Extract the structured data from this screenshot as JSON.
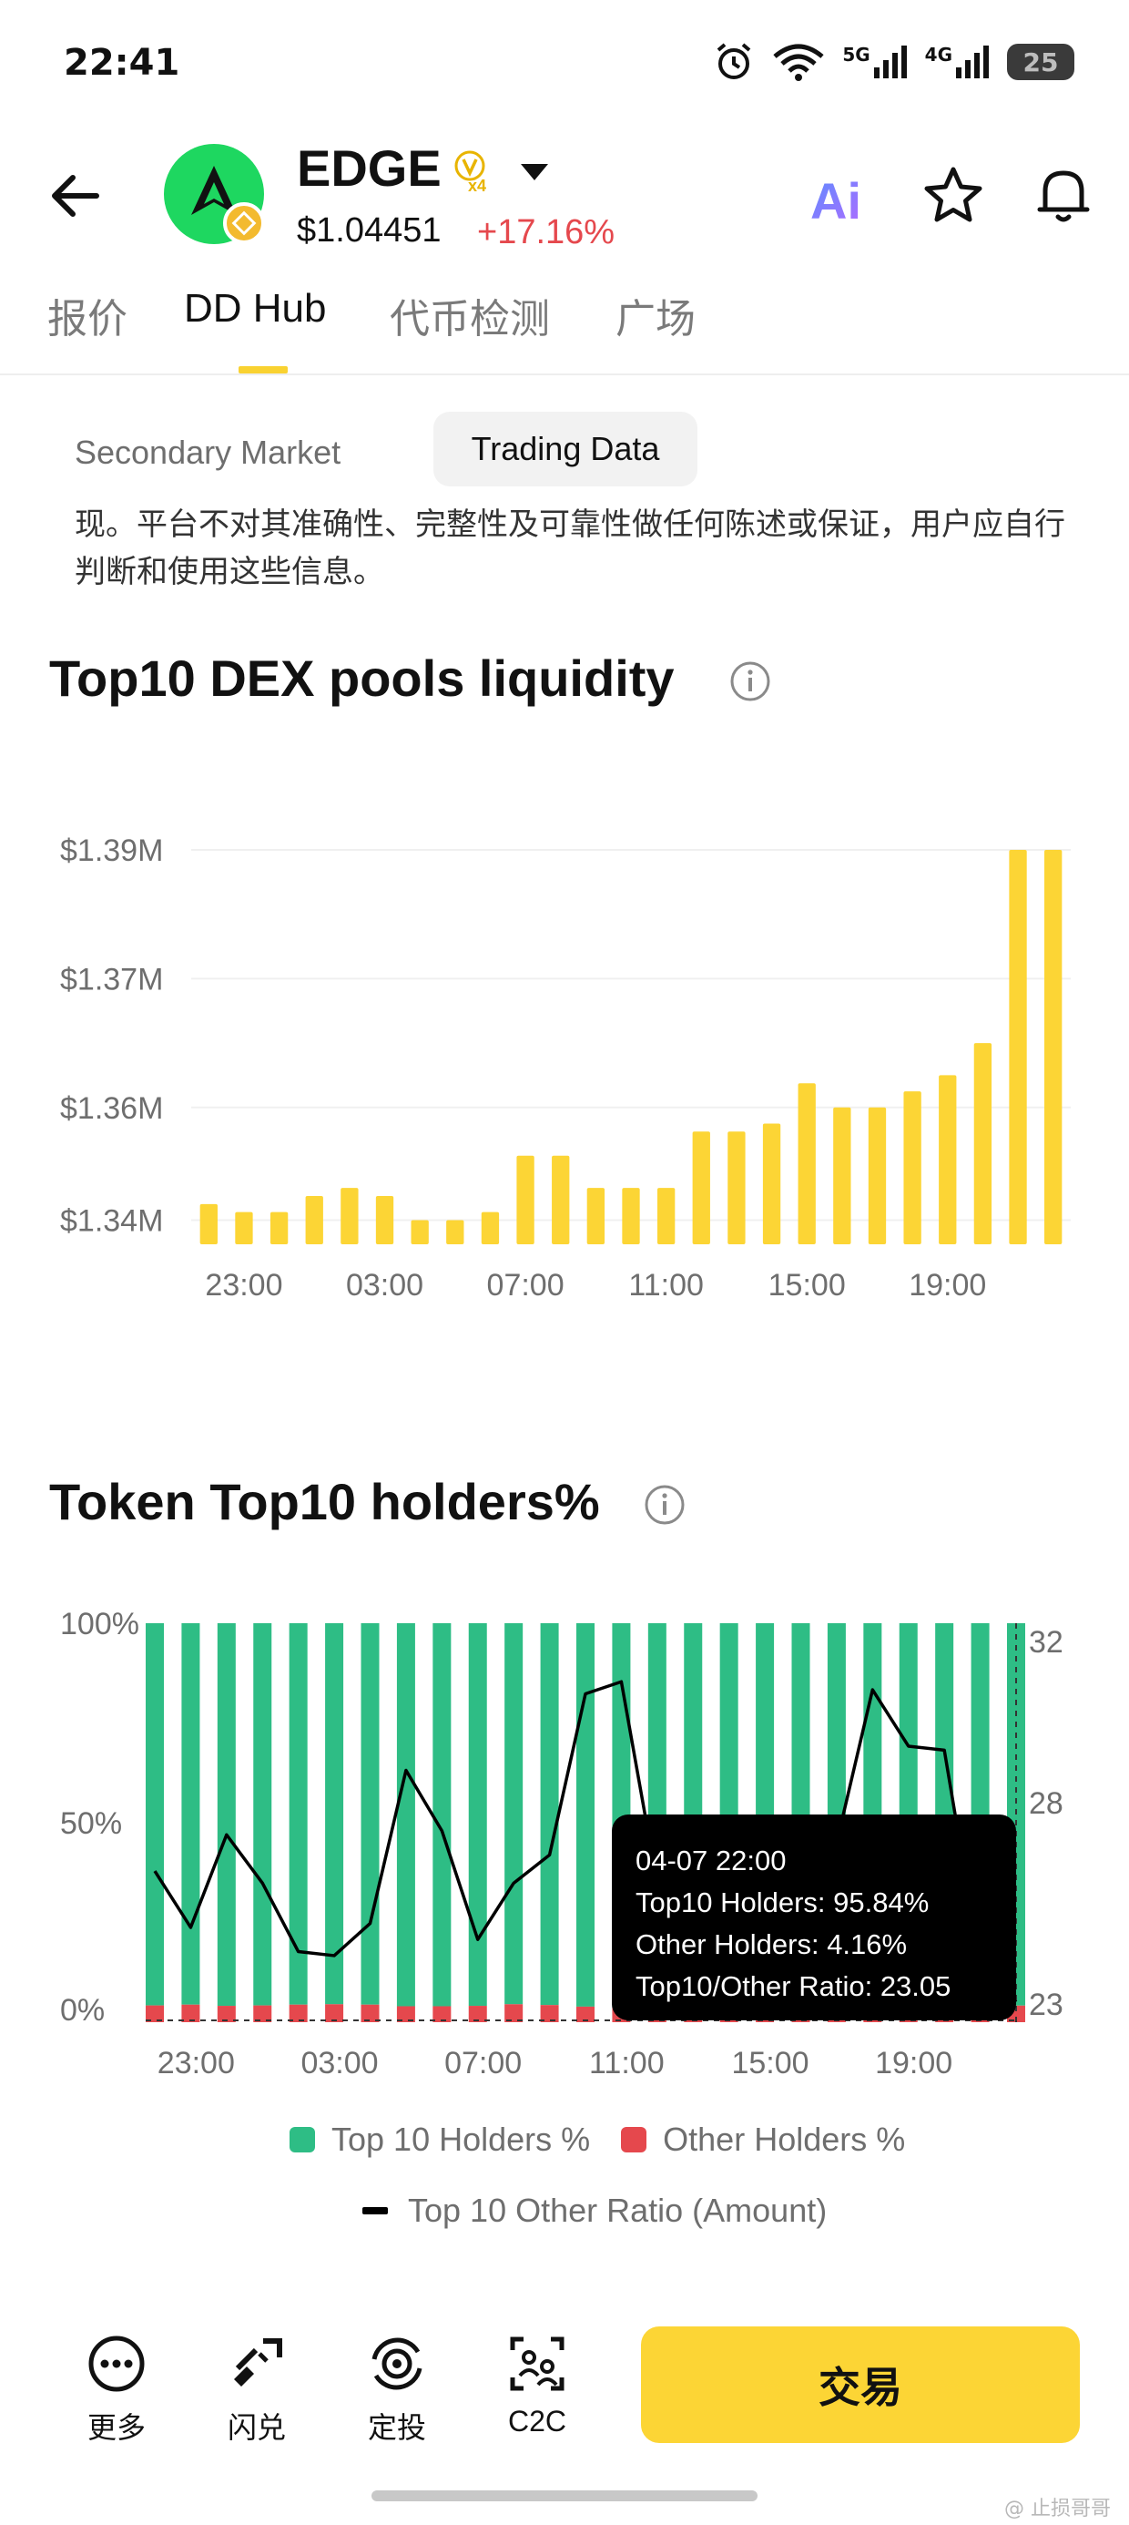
{
  "status_bar": {
    "time": "22:41",
    "network_5g": "5G",
    "network_4g": "4G",
    "battery": "25"
  },
  "header": {
    "symbol": "EDGE",
    "leverage": "x4",
    "price": "$1.04451",
    "change": "+17.16%",
    "ai_label": "Ai"
  },
  "main_tabs": [
    {
      "label": "报价"
    },
    {
      "label": "DD Hub"
    },
    {
      "label": "代币检测"
    },
    {
      "label": "广场"
    }
  ],
  "sub_tabs": [
    {
      "label": "Secondary Market"
    },
    {
      "label": "Trading Data"
    }
  ],
  "disclaimer": "现。平台不对其准确性、完整性及可靠性做任何陈述或保证，用户应自行判断和使用这些信息。",
  "liquidity_section": {
    "title": "Top10 DEX pools liquidity"
  },
  "holders_section": {
    "title": "Token Top10 holders%"
  },
  "chart_data": [
    {
      "type": "bar",
      "title": "Top10 DEX pools liquidity",
      "color": "#fcd535",
      "x": [
        "22:00",
        "23:00",
        "00:00",
        "01:00",
        "02:00",
        "03:00",
        "04:00",
        "05:00",
        "06:00",
        "07:00",
        "08:00",
        "09:00",
        "10:00",
        "11:00",
        "12:00",
        "13:00",
        "14:00",
        "15:00",
        "16:00",
        "17:00",
        "18:00",
        "19:00",
        "20:00",
        "21:00",
        "22:00"
      ],
      "x_tick_labels": [
        "23:00",
        "03:00",
        "07:00",
        "11:00",
        "15:00",
        "19:00"
      ],
      "values": [
        1.343,
        1.342,
        1.342,
        1.344,
        1.345,
        1.344,
        1.341,
        1.341,
        1.342,
        1.349,
        1.349,
        1.345,
        1.345,
        1.345,
        1.352,
        1.352,
        1.353,
        1.358,
        1.355,
        1.355,
        1.357,
        1.359,
        1.363,
        1.387,
        1.387
      ],
      "y_tick_labels": [
        "$1.39M",
        "$1.37M",
        "$1.36M",
        "$1.34M"
      ],
      "ylim": [
        1.338,
        1.393
      ],
      "unit": "$M"
    },
    {
      "type": "bar",
      "title": "Token Top10 holders%",
      "x_tick_labels": [
        "23:00",
        "03:00",
        "07:00",
        "11:00",
        "15:00",
        "19:00"
      ],
      "y_left_ticks": [
        "100%",
        "50%",
        "0%"
      ],
      "y_right_ticks": [
        "32",
        "28",
        "23"
      ],
      "series": [
        {
          "name": "Top 10 Holders %",
          "color": "#2ebd85",
          "values": [
            95.8,
            95.6,
            95.9,
            95.8,
            95.6,
            95.5,
            95.6,
            96.0,
            96.0,
            95.9,
            95.5,
            95.7,
            96.1,
            96.3,
            96.3,
            96.0,
            95.9,
            95.9,
            95.8,
            95.9,
            96.0,
            96.2,
            96.0,
            96.0,
            95.84
          ]
        },
        {
          "name": "Other Holders %",
          "color": "#e5484d",
          "values": [
            4.2,
            4.4,
            4.1,
            4.2,
            4.4,
            4.5,
            4.4,
            4.0,
            4.0,
            4.1,
            4.5,
            4.3,
            3.9,
            3.7,
            3.7,
            4.0,
            4.1,
            4.1,
            4.2,
            4.1,
            4.0,
            3.8,
            4.0,
            4.0,
            4.16
          ]
        },
        {
          "name": "Top 10 Other Ratio (Amount)",
          "type": "line",
          "color": "#000000",
          "values": [
            26.3,
            24.9,
            27.2,
            26.0,
            24.3,
            24.2,
            25.0,
            28.8,
            27.3,
            24.6,
            26.0,
            26.7,
            30.7,
            31.0,
            26.0,
            24.8,
            24.5,
            25.2,
            24.6,
            27.0,
            30.8,
            29.4,
            29.3,
            24.0,
            23.05
          ]
        }
      ],
      "right_axis_range": [
        23,
        32
      ]
    }
  ],
  "tooltip": {
    "date": "04-07 22:00",
    "top10": "Top10 Holders: 95.84%",
    "other": "Other Holders: 4.16%",
    "ratio": "Top10/Other Ratio: 23.05"
  },
  "legend": {
    "top10": "Top 10 Holders %",
    "other": "Other Holders %",
    "ratio": "Top 10 Other Ratio (Amount)"
  },
  "bottom_bar": {
    "more": "更多",
    "swap": "闪兑",
    "dca": "定投",
    "c2c": "C2C",
    "trade": "交易"
  },
  "watermark": "@ 止损哥哥"
}
